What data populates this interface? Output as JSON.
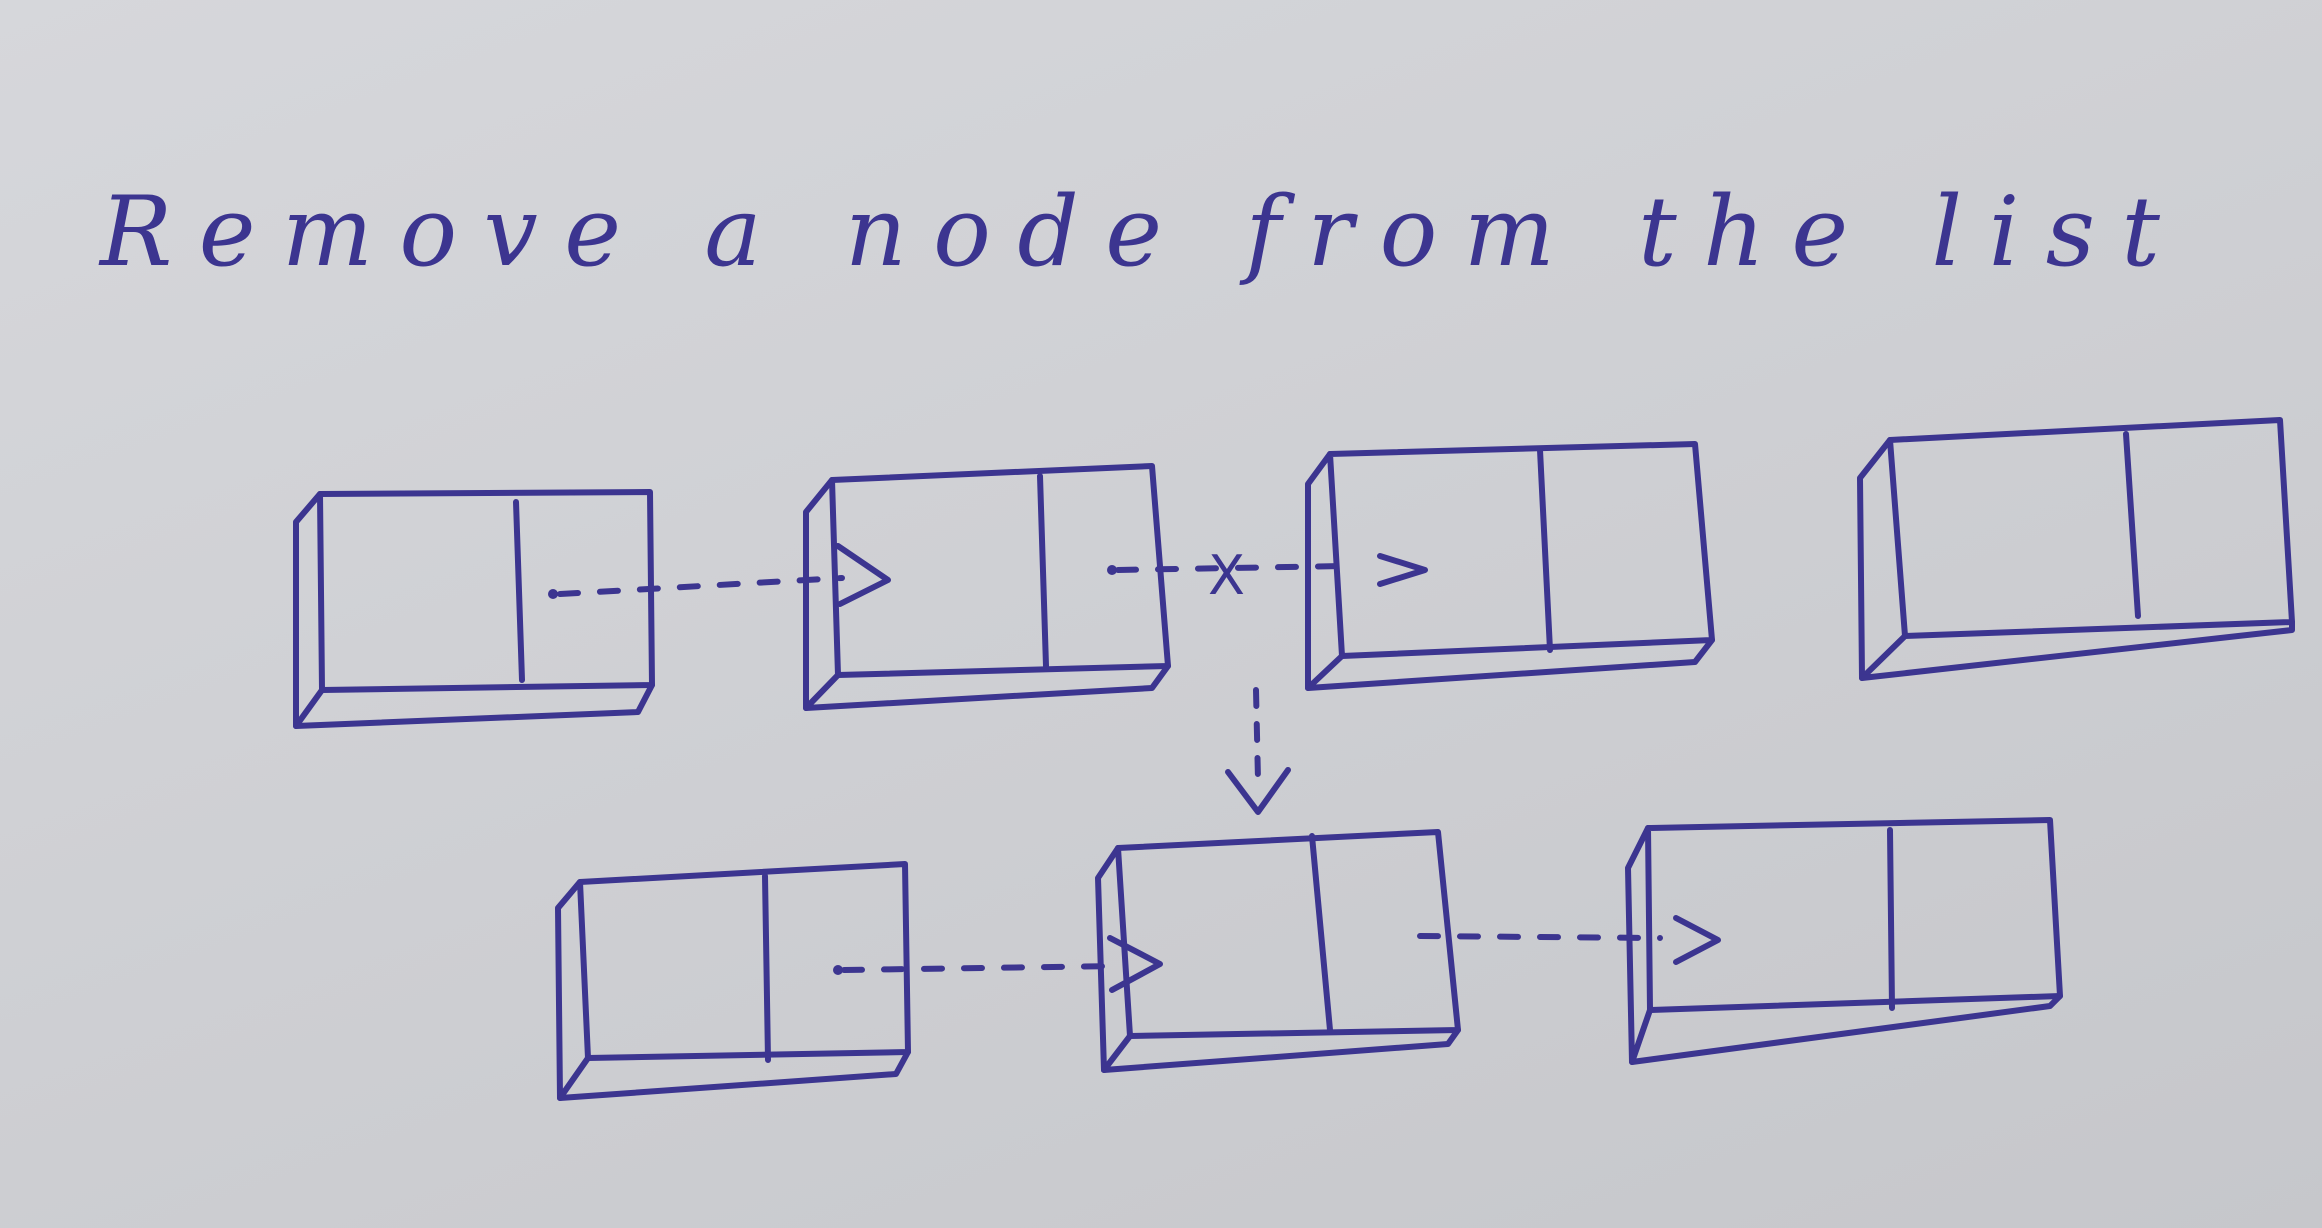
{
  "title": "Remove a node from the list",
  "colors": {
    "paper": "#d2d3d7",
    "ink": "#3c3590"
  },
  "top_row": {
    "nodes": 4,
    "removed_link_mark": "X"
  },
  "bottom_row": {
    "nodes": 3
  }
}
